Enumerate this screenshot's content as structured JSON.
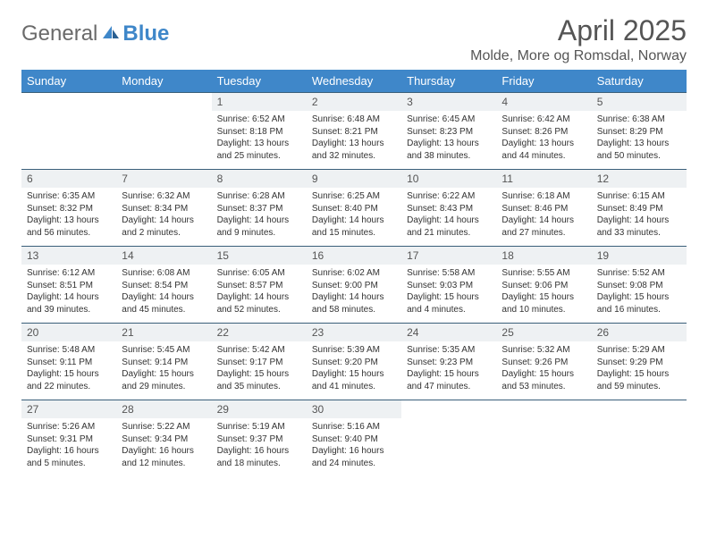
{
  "brand": {
    "part1": "General",
    "part2": "Blue"
  },
  "title": "April 2025",
  "location": "Molde, More og Romsdal, Norway",
  "colors": {
    "header_bg": "#3f87c9",
    "header_text": "#ffffff",
    "daynum_bg": "#eef1f3",
    "daynum_border": "#3a5f7a",
    "body_text": "#333333",
    "title_text": "#555555",
    "page_bg": "#ffffff"
  },
  "days_of_week": [
    "Sunday",
    "Monday",
    "Tuesday",
    "Wednesday",
    "Thursday",
    "Friday",
    "Saturday"
  ],
  "weeks": [
    [
      null,
      null,
      {
        "n": "1",
        "sr": "Sunrise: 6:52 AM",
        "ss": "Sunset: 8:18 PM",
        "d1": "Daylight: 13 hours",
        "d2": "and 25 minutes."
      },
      {
        "n": "2",
        "sr": "Sunrise: 6:48 AM",
        "ss": "Sunset: 8:21 PM",
        "d1": "Daylight: 13 hours",
        "d2": "and 32 minutes."
      },
      {
        "n": "3",
        "sr": "Sunrise: 6:45 AM",
        "ss": "Sunset: 8:23 PM",
        "d1": "Daylight: 13 hours",
        "d2": "and 38 minutes."
      },
      {
        "n": "4",
        "sr": "Sunrise: 6:42 AM",
        "ss": "Sunset: 8:26 PM",
        "d1": "Daylight: 13 hours",
        "d2": "and 44 minutes."
      },
      {
        "n": "5",
        "sr": "Sunrise: 6:38 AM",
        "ss": "Sunset: 8:29 PM",
        "d1": "Daylight: 13 hours",
        "d2": "and 50 minutes."
      }
    ],
    [
      {
        "n": "6",
        "sr": "Sunrise: 6:35 AM",
        "ss": "Sunset: 8:32 PM",
        "d1": "Daylight: 13 hours",
        "d2": "and 56 minutes."
      },
      {
        "n": "7",
        "sr": "Sunrise: 6:32 AM",
        "ss": "Sunset: 8:34 PM",
        "d1": "Daylight: 14 hours",
        "d2": "and 2 minutes."
      },
      {
        "n": "8",
        "sr": "Sunrise: 6:28 AM",
        "ss": "Sunset: 8:37 PM",
        "d1": "Daylight: 14 hours",
        "d2": "and 9 minutes."
      },
      {
        "n": "9",
        "sr": "Sunrise: 6:25 AM",
        "ss": "Sunset: 8:40 PM",
        "d1": "Daylight: 14 hours",
        "d2": "and 15 minutes."
      },
      {
        "n": "10",
        "sr": "Sunrise: 6:22 AM",
        "ss": "Sunset: 8:43 PM",
        "d1": "Daylight: 14 hours",
        "d2": "and 21 minutes."
      },
      {
        "n": "11",
        "sr": "Sunrise: 6:18 AM",
        "ss": "Sunset: 8:46 PM",
        "d1": "Daylight: 14 hours",
        "d2": "and 27 minutes."
      },
      {
        "n": "12",
        "sr": "Sunrise: 6:15 AM",
        "ss": "Sunset: 8:49 PM",
        "d1": "Daylight: 14 hours",
        "d2": "and 33 minutes."
      }
    ],
    [
      {
        "n": "13",
        "sr": "Sunrise: 6:12 AM",
        "ss": "Sunset: 8:51 PM",
        "d1": "Daylight: 14 hours",
        "d2": "and 39 minutes."
      },
      {
        "n": "14",
        "sr": "Sunrise: 6:08 AM",
        "ss": "Sunset: 8:54 PM",
        "d1": "Daylight: 14 hours",
        "d2": "and 45 minutes."
      },
      {
        "n": "15",
        "sr": "Sunrise: 6:05 AM",
        "ss": "Sunset: 8:57 PM",
        "d1": "Daylight: 14 hours",
        "d2": "and 52 minutes."
      },
      {
        "n": "16",
        "sr": "Sunrise: 6:02 AM",
        "ss": "Sunset: 9:00 PM",
        "d1": "Daylight: 14 hours",
        "d2": "and 58 minutes."
      },
      {
        "n": "17",
        "sr": "Sunrise: 5:58 AM",
        "ss": "Sunset: 9:03 PM",
        "d1": "Daylight: 15 hours",
        "d2": "and 4 minutes."
      },
      {
        "n": "18",
        "sr": "Sunrise: 5:55 AM",
        "ss": "Sunset: 9:06 PM",
        "d1": "Daylight: 15 hours",
        "d2": "and 10 minutes."
      },
      {
        "n": "19",
        "sr": "Sunrise: 5:52 AM",
        "ss": "Sunset: 9:08 PM",
        "d1": "Daylight: 15 hours",
        "d2": "and 16 minutes."
      }
    ],
    [
      {
        "n": "20",
        "sr": "Sunrise: 5:48 AM",
        "ss": "Sunset: 9:11 PM",
        "d1": "Daylight: 15 hours",
        "d2": "and 22 minutes."
      },
      {
        "n": "21",
        "sr": "Sunrise: 5:45 AM",
        "ss": "Sunset: 9:14 PM",
        "d1": "Daylight: 15 hours",
        "d2": "and 29 minutes."
      },
      {
        "n": "22",
        "sr": "Sunrise: 5:42 AM",
        "ss": "Sunset: 9:17 PM",
        "d1": "Daylight: 15 hours",
        "d2": "and 35 minutes."
      },
      {
        "n": "23",
        "sr": "Sunrise: 5:39 AM",
        "ss": "Sunset: 9:20 PM",
        "d1": "Daylight: 15 hours",
        "d2": "and 41 minutes."
      },
      {
        "n": "24",
        "sr": "Sunrise: 5:35 AM",
        "ss": "Sunset: 9:23 PM",
        "d1": "Daylight: 15 hours",
        "d2": "and 47 minutes."
      },
      {
        "n": "25",
        "sr": "Sunrise: 5:32 AM",
        "ss": "Sunset: 9:26 PM",
        "d1": "Daylight: 15 hours",
        "d2": "and 53 minutes."
      },
      {
        "n": "26",
        "sr": "Sunrise: 5:29 AM",
        "ss": "Sunset: 9:29 PM",
        "d1": "Daylight: 15 hours",
        "d2": "and 59 minutes."
      }
    ],
    [
      {
        "n": "27",
        "sr": "Sunrise: 5:26 AM",
        "ss": "Sunset: 9:31 PM",
        "d1": "Daylight: 16 hours",
        "d2": "and 5 minutes."
      },
      {
        "n": "28",
        "sr": "Sunrise: 5:22 AM",
        "ss": "Sunset: 9:34 PM",
        "d1": "Daylight: 16 hours",
        "d2": "and 12 minutes."
      },
      {
        "n": "29",
        "sr": "Sunrise: 5:19 AM",
        "ss": "Sunset: 9:37 PM",
        "d1": "Daylight: 16 hours",
        "d2": "and 18 minutes."
      },
      {
        "n": "30",
        "sr": "Sunrise: 5:16 AM",
        "ss": "Sunset: 9:40 PM",
        "d1": "Daylight: 16 hours",
        "d2": "and 24 minutes."
      },
      null,
      null,
      null
    ]
  ]
}
